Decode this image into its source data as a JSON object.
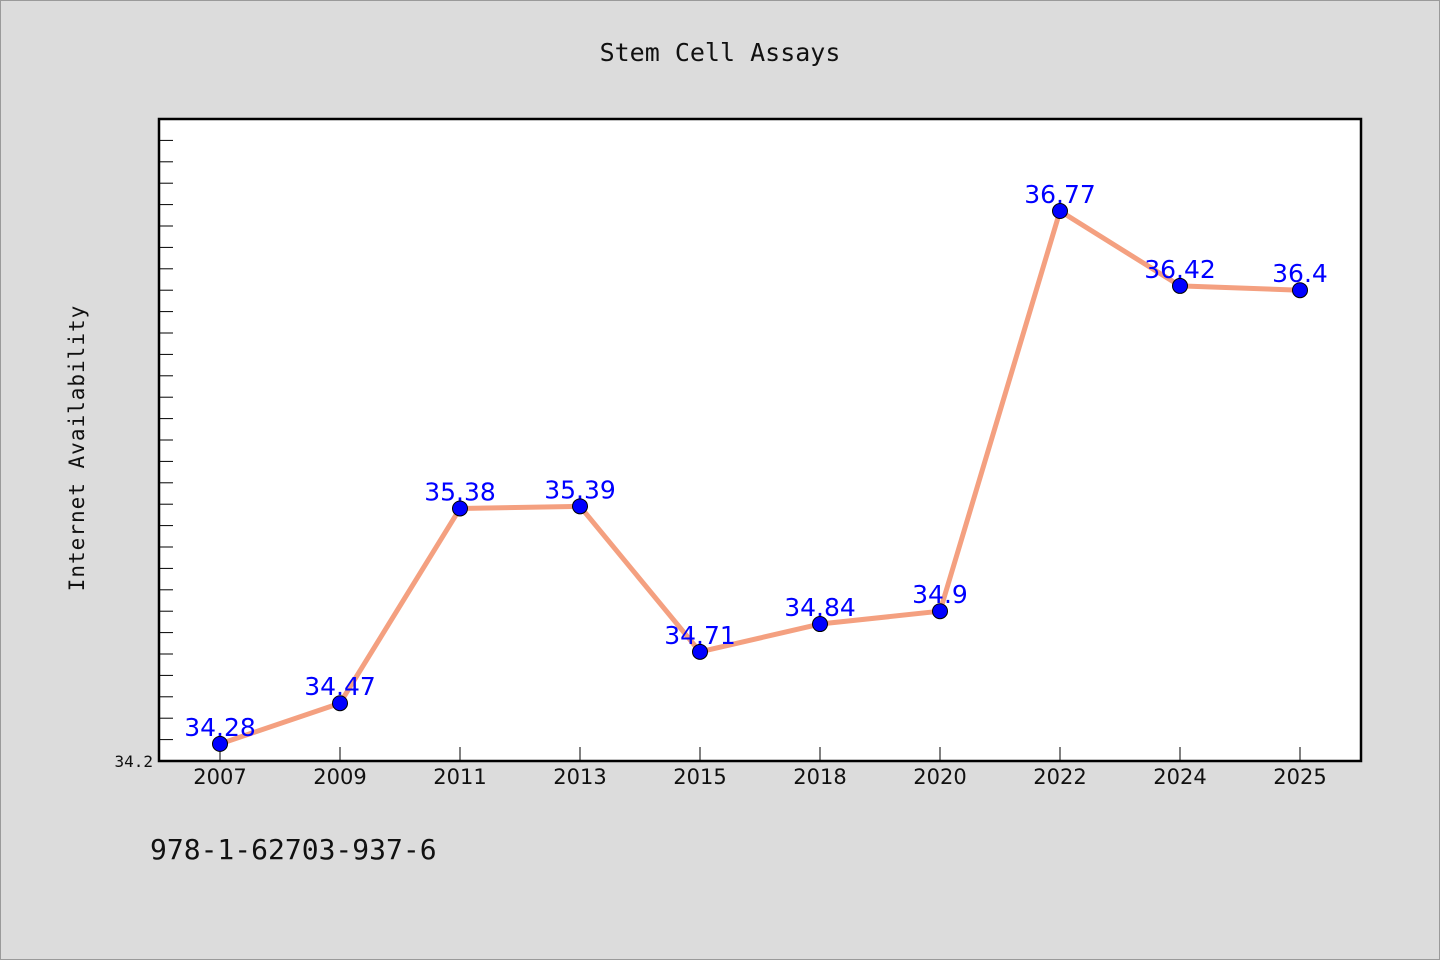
{
  "chart_data": {
    "type": "line",
    "title": "Stem Cell Assays",
    "xlabel": "",
    "ylabel": "Internet Availability",
    "categories": [
      "2007",
      "2009",
      "2011",
      "2013",
      "2015",
      "2018",
      "2020",
      "2022",
      "2024",
      "2025"
    ],
    "series": [
      {
        "values": [
          34.28,
          34.47,
          35.38,
          35.39,
          34.71,
          34.84,
          34.9,
          36.77,
          36.42,
          36.4
        ],
        "labels": [
          "34.28",
          "34.47",
          "35.38",
          "35.39",
          "34.71",
          "34.84",
          "34.9",
          "36.77",
          "36.42",
          "36.4"
        ],
        "line_color": "#f4a080",
        "marker_color": "#0000ff",
        "label_color": "#0000ff"
      }
    ],
    "ylim": [
      34.2,
      37.2
    ],
    "y_tick_labels": [
      "34.2"
    ],
    "grid": false,
    "legend": "none"
  },
  "footer": {
    "isbn": "978-1-62703-937-6"
  },
  "colors": {
    "background": "#dcdcdc",
    "plot_background": "#ffffff"
  }
}
